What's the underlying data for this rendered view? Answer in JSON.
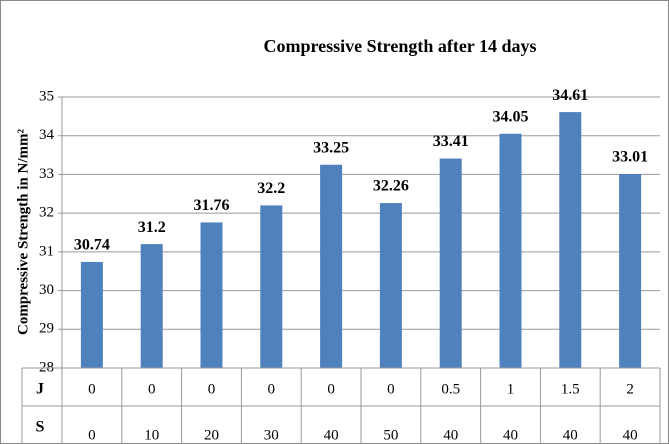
{
  "chart_data": {
    "type": "bar",
    "title": "Compressive  Strength after 14 days",
    "y_label": "Compressive Strength in N/mm²",
    "category_rows": [
      {
        "name": "J",
        "labels": [
          "0",
          "0",
          "0",
          "0",
          "0",
          "0",
          "0.5",
          "1",
          "1.5",
          "2"
        ]
      },
      {
        "name": "S",
        "labels": [
          "0",
          "10",
          "20",
          "30",
          "40",
          "50",
          "40",
          "40",
          "40",
          "40"
        ]
      }
    ],
    "values": [
      30.74,
      31.2,
      31.76,
      32.2,
      33.25,
      32.26,
      33.41,
      34.05,
      34.61,
      33.01
    ],
    "color": "#4f81bd",
    "ylim": [
      28,
      35
    ],
    "yticks": [
      28,
      29,
      30,
      31,
      32,
      33,
      34,
      35
    ],
    "grid": true
  }
}
